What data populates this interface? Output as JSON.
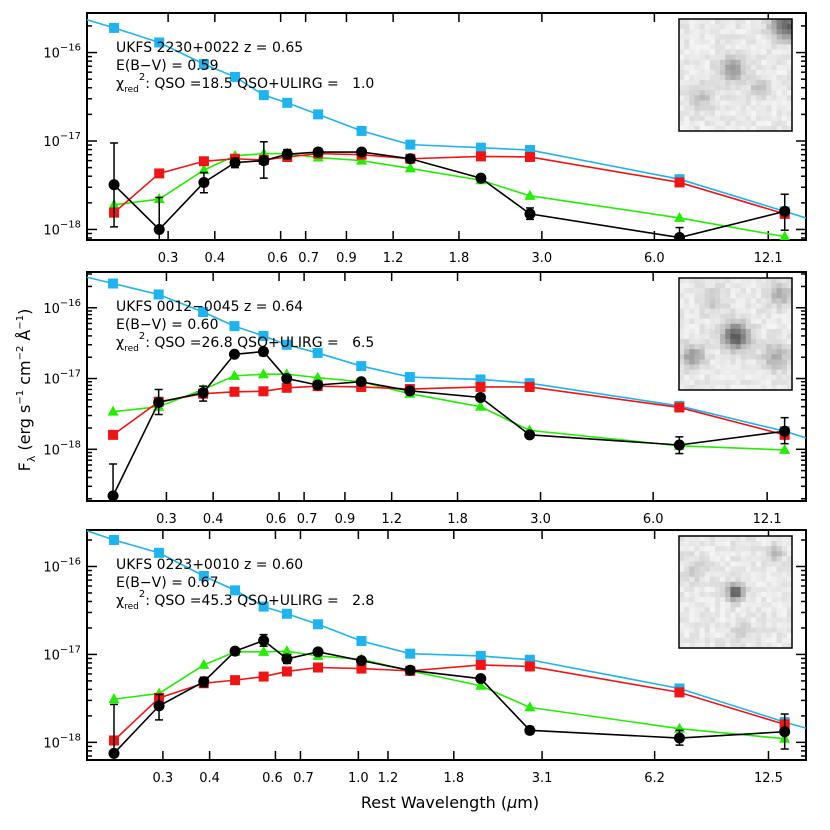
{
  "figure": {
    "xlabel": {
      "main": "Rest Wavelength (",
      "mu": "μ",
      "unit": "m)"
    },
    "ylabel": {
      "f": "F",
      "lambda": "λ",
      "p1": " (erg s",
      "e1": "−1",
      "p2": " cm",
      "e2": "−2",
      "p3": " Å",
      "e3": "−1",
      "p4": ")"
    },
    "y_tick_labels": {
      "base": "10",
      "exp_16": "−16",
      "exp_17": "−17",
      "exp_18": "−18"
    }
  },
  "colors": {
    "qso": "#1EB4F0",
    "qso_ulirg": "#F01414",
    "ulirg": "#22EE00",
    "data": "#000000"
  },
  "chart_data": [
    {
      "type": "line",
      "xscale": "log",
      "yscale": "log",
      "xlim": [
        0.182,
        15.27
      ],
      "ylim": [
        7.6e-19,
        2.8e-16
      ],
      "x_tick_labels": [
        "0.3",
        "0.4",
        "0.6",
        "0.7",
        "0.9",
        "1.2",
        "1.8",
        "3.0",
        "6.0",
        "12.1"
      ],
      "annotation": {
        "title": "UKFS 2230+0022 z = 0.65",
        "ebv": "E(B−V) = 0.59",
        "chi": "χ",
        "chi_sub": "red",
        "chi_sup": "2",
        "chi_rest": ": QSO =18.5 QSO+ULIRG =   1.0"
      },
      "x": [
        0.215,
        0.284,
        0.374,
        0.453,
        0.541,
        0.625,
        0.756,
        0.988,
        1.334,
        2.061,
        2.788,
        7.006,
        13.394
      ],
      "qso_curve_ends": {
        "x": [
          0.182,
          15.27
        ],
        "y": [
          2.35e-16,
          1.35e-18
        ]
      },
      "series": [
        {
          "key": "qso",
          "marker": "square",
          "y": [
            1.9e-16,
            1.3e-16,
            7.4e-17,
            5.3e-17,
            3.3e-17,
            2.7e-17,
            2e-17,
            1.3e-17,
            9.1e-18,
            8.4e-18,
            7.9e-18,
            3.7e-18,
            1.6e-18
          ]
        },
        {
          "key": "qso_ulirg",
          "marker": "square",
          "y": [
            1.55e-18,
            4.3e-18,
            5.9e-18,
            6.3e-18,
            6.1e-18,
            6.6e-18,
            7.2e-18,
            7e-18,
            6.3e-18,
            6.7e-18,
            6.6e-18,
            3.4e-18,
            1.5e-18
          ]
        },
        {
          "key": "ulirg",
          "marker": "triangle",
          "y": [
            1.9e-18,
            2.2e-18,
            4.7e-18,
            6.8e-18,
            7.2e-18,
            7.2e-18,
            6.5e-18,
            6e-18,
            4.9e-18,
            3.6e-18,
            2.4e-18,
            1.35e-18,
            8.3e-19
          ]
        },
        {
          "key": "data",
          "marker": "circle",
          "y": [
            3.2e-18,
            1e-18,
            3.4e-18,
            5.7e-18,
            6e-18,
            7.1e-18,
            7.5e-18,
            7.5e-18,
            6.3e-18,
            3.8e-18,
            1.5e-18,
            8.1e-19,
            1.6e-18
          ],
          "err": [
            [
              1.07e-18,
              9.5e-18
            ],
            [
              7e-19,
              2.3e-18
            ],
            [
              2.6e-18,
              4.4e-18
            ],
            [
              5e-18,
              6.4e-18
            ],
            [
              3.8e-18,
              9.8e-18
            ],
            [
              6.3e-18,
              8e-18
            ],
            [
              6.8e-18,
              8.2e-18
            ],
            [
              6.9e-18,
              8.1e-18
            ],
            [
              5.8e-18,
              6.8e-18
            ],
            [
              3.5e-18,
              4.1e-18
            ],
            [
              1.3e-18,
              1.75e-18
            ],
            [
              7.8e-19,
              1.05e-18
            ],
            [
              9.8e-19,
              2.5e-18
            ]
          ]
        }
      ]
    },
    {
      "type": "line",
      "xscale": "log",
      "yscale": "log",
      "xlim": [
        0.184,
        15.37
      ],
      "ylim": [
        1.86e-19,
        3.2e-16
      ],
      "x_tick_labels": [
        "0.3",
        "0.4",
        "0.6",
        "0.7",
        "0.9",
        "1.2",
        "1.8",
        "3.0",
        "6.0",
        "12.1"
      ],
      "annotation": {
        "title": "UKFS 0012−0045 z = 0.64",
        "ebv": "E(B−V) = 0.60",
        "chi": "χ",
        "chi_sub": "red",
        "chi_sup": "2",
        "chi_rest": ": QSO =26.8 QSO+ULIRG =   6.5"
      },
      "x": [
        0.216,
        0.286,
        0.376,
        0.456,
        0.545,
        0.629,
        0.761,
        0.995,
        1.342,
        2.073,
        2.805,
        7.049,
        13.476
      ],
      "qso_curve_ends": {
        "x": [
          0.184,
          15.37
        ],
        "y": [
          2.7e-16,
          1.45e-18
        ]
      },
      "series": [
        {
          "key": "qso",
          "marker": "square",
          "y": [
            2.2e-16,
            1.54e-16,
            8.7e-17,
            5.5e-17,
            4e-17,
            3e-17,
            2.3e-17,
            1.5e-17,
            1.05e-17,
            9.7e-18,
            8.6e-18,
            4.1e-18,
            1.8e-18
          ]
        },
        {
          "key": "qso_ulirg",
          "marker": "square",
          "y": [
            1.6e-18,
            4.7e-18,
            6.1e-18,
            6.5e-18,
            6.6e-18,
            7.4e-18,
            7.8e-18,
            7.6e-18,
            7.1e-18,
            7.6e-18,
            7.6e-18,
            3.9e-18,
            1.6e-18
          ]
        },
        {
          "key": "ulirg",
          "marker": "triangle",
          "y": [
            3.4e-18,
            4e-18,
            7e-18,
            1.09e-17,
            1.15e-17,
            1.15e-17,
            1.03e-17,
            9e-18,
            6.1e-18,
            4e-18,
            1.85e-18,
            1.12e-18,
            9.8e-19
          ]
        },
        {
          "key": "data",
          "marker": "circle",
          "y": [
            2.2e-19,
            4.6e-18,
            6.3e-18,
            2.2e-17,
            2.4e-17,
            1e-17,
            8.1e-18,
            9e-18,
            6.7e-18,
            5.4e-18,
            1.6e-18,
            1.15e-18,
            1.8e-18
          ],
          "err": [
            [
              1.5e-19,
              6.2e-19
            ],
            [
              3.1e-18,
              7e-18
            ],
            [
              4.8e-18,
              7.8e-18
            ],
            [
              2e-17,
              2.4e-17
            ],
            [
              2.1e-17,
              2.7e-17
            ],
            [
              9.2e-18,
              1.1e-17
            ],
            [
              7.5e-18,
              8.7e-18
            ],
            [
              8.4e-18,
              9.6e-18
            ],
            [
              6.3e-18,
              7.1e-18
            ],
            [
              5.1e-18,
              5.7e-18
            ],
            [
              1.5e-18,
              1.7e-18
            ],
            [
              8.7e-19,
              1.5e-18
            ],
            [
              1.2e-18,
              2.8e-18
            ]
          ]
        }
      ]
    },
    {
      "type": "line",
      "xscale": "log",
      "yscale": "log",
      "xlim": [
        0.188,
        15.75
      ],
      "ylim": [
        6.3e-19,
        2.6e-16
      ],
      "x_tick_labels": [
        "0.3",
        "0.4",
        "0.6",
        "0.7",
        "1.0",
        "1.2",
        "1.8",
        "3.1",
        "6.2",
        "12.5"
      ],
      "annotation": {
        "title": "UKFS 0223+0010 z = 0.60",
        "ebv": "E(B−V) = 0.67",
        "chi": "χ",
        "chi_sub": "red",
        "chi_sup": "2",
        "chi_rest": ": QSO =45.3 QSO+ULIRG =   2.8"
      },
      "x": [
        0.222,
        0.293,
        0.386,
        0.468,
        0.558,
        0.644,
        0.78,
        1.019,
        1.376,
        2.125,
        2.875,
        7.225,
        13.813
      ],
      "qso_curve_ends": {
        "x": [
          0.188,
          15.75
        ],
        "y": [
          2.55e-16,
          1.45e-18
        ]
      },
      "series": [
        {
          "key": "qso",
          "marker": "square",
          "y": [
            2e-16,
            1.43e-16,
            7.8e-17,
            5.35e-17,
            3.5e-17,
            2.9e-17,
            2.2e-17,
            1.42e-17,
            1.02e-17,
            9.6e-18,
            8.7e-18,
            4.1e-18,
            1.7e-18
          ]
        },
        {
          "key": "qso_ulirg",
          "marker": "square",
          "y": [
            1.05e-18,
            3.2e-18,
            4.7e-18,
            5.1e-18,
            5.6e-18,
            6.4e-18,
            7.1e-18,
            6.9e-18,
            6.5e-18,
            7.6e-18,
            7.3e-18,
            3.7e-18,
            1.6e-18
          ]
        },
        {
          "key": "ulirg",
          "marker": "triangle",
          "y": [
            3.1e-18,
            3.6e-18,
            7.6e-18,
            1.07e-17,
            1.07e-17,
            1.09e-17,
            9.6e-18,
            8.8e-18,
            6.5e-18,
            4.4e-18,
            2.5e-18,
            1.43e-18,
            1.1e-18
          ]
        },
        {
          "key": "data",
          "marker": "circle",
          "y": [
            7.5e-19,
            2.6e-18,
            4.9e-18,
            1.09e-17,
            1.44e-17,
            8.9e-18,
            1.07e-17,
            8.5e-18,
            6.6e-18,
            5.3e-18,
            1.37e-18,
            1.12e-18,
            1.32e-18
          ],
          "err": [
            [
              6e-19,
              2.7e-18
            ],
            [
              1.8e-18,
              3.5e-18
            ],
            [
              4.3e-18,
              5.5e-18
            ],
            [
              1.02e-17,
              1.16e-17
            ],
            [
              1.24e-17,
              1.68e-17
            ],
            [
              7.9e-18,
              9.9e-18
            ],
            [
              9.8e-18,
              1.16e-17
            ],
            [
              7.9e-18,
              9.1e-18
            ],
            [
              6.1e-18,
              7.1e-18
            ],
            [
              4.9e-18,
              5.7e-18
            ],
            [
              1.25e-18,
              1.5e-18
            ],
            [
              9.3e-19,
              1.37e-18
            ],
            [
              8.4e-19,
              2.1e-18
            ]
          ]
        }
      ]
    }
  ]
}
